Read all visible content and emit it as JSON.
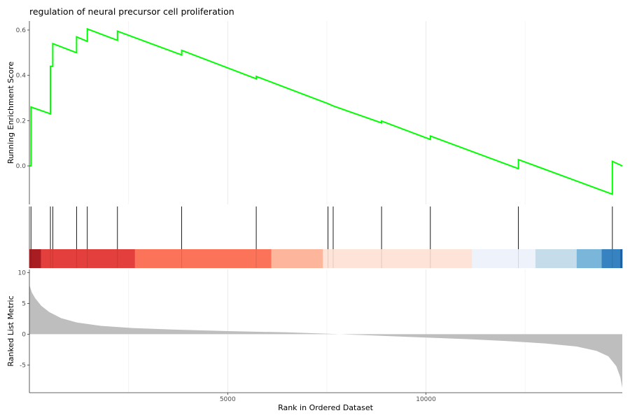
{
  "chart_data": {
    "type": "line",
    "title": "regulation of neural precursor cell proliferation",
    "xlabel": "Rank in Ordered Dataset",
    "x_ticks": [
      5000,
      10000
    ],
    "xlim": [
      0,
      14950
    ],
    "panels": {
      "enrichment": {
        "ylabel": "Running Enrichment Score",
        "ylim": [
          -0.17,
          0.64
        ],
        "y_ticks": [
          0.0,
          0.2,
          0.4,
          0.6
        ],
        "y_tick_labels": [
          "0.0",
          "0.2",
          "0.4",
          "0.6"
        ],
        "line_color": "#00ff00",
        "series": [
          {
            "points": [
              [
                0,
                0.0
              ],
              [
                40,
                0.0
              ],
              [
                40,
                0.26
              ],
              [
                530,
                0.23
              ],
              [
                530,
                0.44
              ],
              [
                590,
                0.44
              ],
              [
                590,
                0.54
              ],
              [
                1190,
                0.5
              ],
              [
                1190,
                0.57
              ],
              [
                1460,
                0.55
              ],
              [
                1460,
                0.605
              ],
              [
                2220,
                0.555
              ],
              [
                2220,
                0.595
              ],
              [
                3840,
                0.49
              ],
              [
                3840,
                0.51
              ],
              [
                5720,
                0.385
              ],
              [
                5720,
                0.395
              ],
              [
                7530,
                0.275
              ],
              [
                7660,
                0.265
              ],
              [
                8880,
                0.19
              ],
              [
                8880,
                0.198
              ],
              [
                10110,
                0.117
              ],
              [
                10110,
                0.132
              ],
              [
                12330,
                -0.012
              ],
              [
                12330,
                0.028
              ],
              [
                14700,
                -0.125
              ],
              [
                14700,
                0.02
              ],
              [
                14950,
                0.0
              ]
            ]
          }
        ]
      },
      "hits": {
        "positions": [
          40,
          530,
          590,
          1190,
          1460,
          2220,
          3840,
          5720,
          7530,
          7660,
          8880,
          10110,
          12330,
          14700
        ]
      },
      "color_bar": {
        "segments": [
          {
            "from": 0,
            "to": 290,
            "color": "#a81c22"
          },
          {
            "from": 290,
            "to": 2660,
            "color": "#e3403d"
          },
          {
            "from": 2660,
            "to": 6100,
            "color": "#fb7459"
          },
          {
            "from": 6100,
            "to": 7400,
            "color": "#fdb69c"
          },
          {
            "from": 7400,
            "to": 11160,
            "color": "#fee4d8"
          },
          {
            "from": 11160,
            "to": 12760,
            "color": "#eef3fb"
          },
          {
            "from": 12760,
            "to": 13800,
            "color": "#c5dcea"
          },
          {
            "from": 13800,
            "to": 14430,
            "color": "#7ab5da"
          },
          {
            "from": 14430,
            "to": 14900,
            "color": "#3783c1"
          },
          {
            "from": 14900,
            "to": 14950,
            "color": "#1a5fa0"
          }
        ]
      },
      "ranked_metric": {
        "ylabel": "Ranked List Metric",
        "ylim": [
          -9.5,
          10.5
        ],
        "y_ticks": [
          10,
          5,
          0,
          -5
        ],
        "y_tick_labels": [
          "10",
          "5",
          "0",
          "-5"
        ],
        "fill_color": "#bebebe",
        "curve": [
          [
            0,
            8.0
          ],
          [
            60,
            6.8
          ],
          [
            150,
            5.8
          ],
          [
            300,
            4.6
          ],
          [
            500,
            3.6
          ],
          [
            800,
            2.6
          ],
          [
            1200,
            1.9
          ],
          [
            1800,
            1.35
          ],
          [
            2600,
            1.0
          ],
          [
            3600,
            0.75
          ],
          [
            5000,
            0.5
          ],
          [
            6500,
            0.3
          ],
          [
            7400,
            0.1
          ],
          [
            8000,
            -0.05
          ],
          [
            9000,
            -0.3
          ],
          [
            10000,
            -0.55
          ],
          [
            11000,
            -0.8
          ],
          [
            12000,
            -1.1
          ],
          [
            13000,
            -1.5
          ],
          [
            13800,
            -2.0
          ],
          [
            14300,
            -2.7
          ],
          [
            14600,
            -3.6
          ],
          [
            14800,
            -5.2
          ],
          [
            14900,
            -7.0
          ],
          [
            14950,
            -8.7
          ]
        ]
      }
    }
  }
}
